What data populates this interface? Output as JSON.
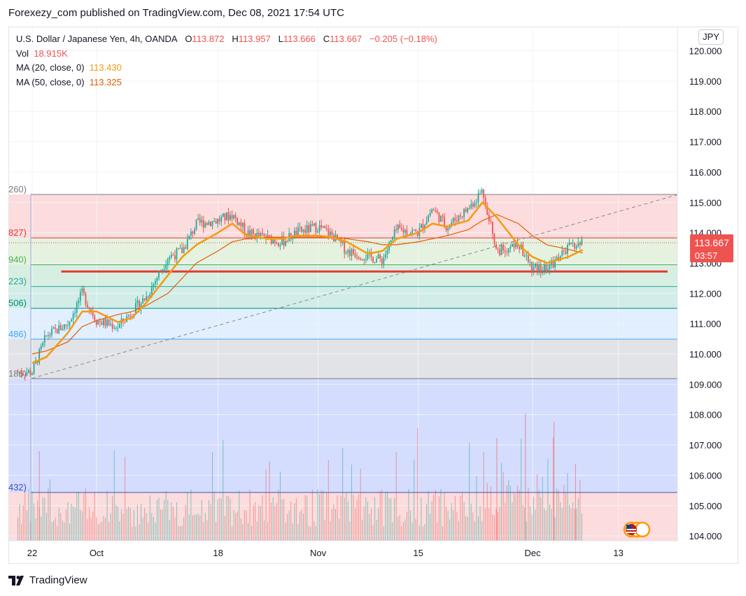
{
  "header": {
    "published_by": "Forexezy_com published on TradingView.com, Dec 08, 2021 17:54 UTC"
  },
  "legend": {
    "symbol": "U.S. Dollar / Japanese Yen, 4h, OANDA",
    "open_label": "O",
    "open": "113.872",
    "high_label": "H",
    "high": "113.957",
    "low_label": "L",
    "low": "113.666",
    "close_label": "C",
    "close": "113.667",
    "change": "−0.205 (−0.18%)",
    "vol_label": "Vol",
    "vol": "18.915K",
    "ma20_label": "MA (20, close, 0)",
    "ma20": "113.430",
    "ma50_label": "MA (50, close, 0)",
    "ma50": "113.325"
  },
  "currency_button": "JPY",
  "price_tag": {
    "price": "113.667",
    "countdown": "03:57"
  },
  "brand": "TradingView",
  "colors": {
    "up": "#26a69a",
    "down": "#ef5350",
    "ma20": "#f59a10",
    "ma50": "#e65c00",
    "support": "#e53935",
    "price_tag": "#ef5350"
  },
  "chart_data": {
    "type": "candlestick",
    "ylim": [
      103.9,
      120.35
    ],
    "y_ticks": [
      "104.000",
      "105.000",
      "106.000",
      "107.000",
      "108.000",
      "109.000",
      "110.000",
      "111.000",
      "112.000",
      "113.000",
      "114.000",
      "115.000",
      "116.000",
      "117.000",
      "118.000",
      "119.000",
      "120.000"
    ],
    "x_ticks": [
      {
        "label": "22",
        "date": "2021-09-22"
      },
      {
        "label": "Oct",
        "date": "2021-10-01"
      },
      {
        "label": "18",
        "date": "2021-10-18"
      },
      {
        "label": "Nov",
        "date": "2021-11-01"
      },
      {
        "label": "15",
        "date": "2021-11-15"
      },
      {
        "label": "Dec",
        "date": "2021-12-01"
      },
      {
        "label": "13",
        "date": "2021-12-13"
      }
    ],
    "price_path": [
      [
        "2021-09-22",
        109.4
      ],
      [
        "2021-09-24",
        110.6
      ],
      [
        "2021-09-27",
        111.0
      ],
      [
        "2021-09-29",
        112.0
      ],
      [
        "2021-10-01",
        111.1
      ],
      [
        "2021-10-04",
        110.9
      ],
      [
        "2021-10-06",
        111.4
      ],
      [
        "2021-10-08",
        111.9
      ],
      [
        "2021-10-11",
        113.2
      ],
      [
        "2021-10-13",
        113.4
      ],
      [
        "2021-10-15",
        114.3
      ],
      [
        "2021-10-18",
        114.4
      ],
      [
        "2021-10-20",
        114.6
      ],
      [
        "2021-10-22",
        114.0
      ],
      [
        "2021-10-25",
        113.8
      ],
      [
        "2021-10-27",
        113.7
      ],
      [
        "2021-10-29",
        114.0
      ],
      [
        "2021-11-01",
        114.2
      ],
      [
        "2021-11-03",
        113.9
      ],
      [
        "2021-11-05",
        113.4
      ],
      [
        "2021-11-08",
        113.2
      ],
      [
        "2021-11-10",
        113.1
      ],
      [
        "2021-11-12",
        114.1
      ],
      [
        "2021-11-15",
        114.0
      ],
      [
        "2021-11-17",
        114.8
      ],
      [
        "2021-11-19",
        114.2
      ],
      [
        "2021-11-22",
        114.8
      ],
      [
        "2021-11-24",
        115.4
      ],
      [
        "2021-11-26",
        113.4
      ],
      [
        "2021-11-29",
        113.6
      ],
      [
        "2021-12-01",
        112.8
      ],
      [
        "2021-12-03",
        112.8
      ],
      [
        "2021-12-06",
        113.5
      ],
      [
        "2021-12-08",
        113.67
      ]
    ],
    "ma20_path": [
      [
        "2021-09-22",
        109.7
      ],
      [
        "2021-09-24",
        109.9
      ],
      [
        "2021-09-27",
        110.7
      ],
      [
        "2021-09-29",
        111.4
      ],
      [
        "2021-10-01",
        111.4
      ],
      [
        "2021-10-04",
        111.05
      ],
      [
        "2021-10-06",
        111.2
      ],
      [
        "2021-10-08",
        111.7
      ],
      [
        "2021-10-11",
        112.6
      ],
      [
        "2021-10-13",
        113.2
      ],
      [
        "2021-10-15",
        113.6
      ],
      [
        "2021-10-18",
        114.0
      ],
      [
        "2021-10-20",
        114.3
      ],
      [
        "2021-10-22",
        113.9
      ],
      [
        "2021-10-25",
        113.8
      ],
      [
        "2021-10-27",
        113.8
      ],
      [
        "2021-10-29",
        113.9
      ],
      [
        "2021-11-01",
        113.9
      ],
      [
        "2021-11-03",
        113.85
      ],
      [
        "2021-11-05",
        113.7
      ],
      [
        "2021-11-08",
        113.3
      ],
      [
        "2021-11-10",
        113.4
      ],
      [
        "2021-11-12",
        113.8
      ],
      [
        "2021-11-15",
        114.0
      ],
      [
        "2021-11-17",
        114.3
      ],
      [
        "2021-11-19",
        114.2
      ],
      [
        "2021-11-22",
        114.4
      ],
      [
        "2021-11-24",
        115.0
      ],
      [
        "2021-11-26",
        114.5
      ],
      [
        "2021-11-29",
        113.6
      ],
      [
        "2021-12-01",
        113.2
      ],
      [
        "2021-12-03",
        113.0
      ],
      [
        "2021-12-06",
        113.2
      ],
      [
        "2021-12-08",
        113.43
      ]
    ],
    "ma50_path": [
      [
        "2021-09-22",
        110.0
      ],
      [
        "2021-09-24",
        110.1
      ],
      [
        "2021-09-27",
        110.4
      ],
      [
        "2021-09-29",
        110.9
      ],
      [
        "2021-10-01",
        111.1
      ],
      [
        "2021-10-04",
        111.3
      ],
      [
        "2021-10-06",
        111.4
      ],
      [
        "2021-10-08",
        111.6
      ],
      [
        "2021-10-11",
        112.0
      ],
      [
        "2021-10-13",
        112.5
      ],
      [
        "2021-10-15",
        113.0
      ],
      [
        "2021-10-18",
        113.4
      ],
      [
        "2021-10-20",
        113.7
      ],
      [
        "2021-10-22",
        113.8
      ],
      [
        "2021-10-25",
        113.85
      ],
      [
        "2021-10-27",
        113.85
      ],
      [
        "2021-10-29",
        113.85
      ],
      [
        "2021-11-01",
        113.85
      ],
      [
        "2021-11-03",
        113.85
      ],
      [
        "2021-11-05",
        113.8
      ],
      [
        "2021-11-08",
        113.7
      ],
      [
        "2021-11-10",
        113.6
      ],
      [
        "2021-11-12",
        113.6
      ],
      [
        "2021-11-15",
        113.7
      ],
      [
        "2021-11-17",
        113.8
      ],
      [
        "2021-11-19",
        113.9
      ],
      [
        "2021-11-22",
        114.1
      ],
      [
        "2021-11-24",
        114.4
      ],
      [
        "2021-11-26",
        114.6
      ],
      [
        "2021-11-29",
        114.3
      ],
      [
        "2021-12-01",
        113.9
      ],
      [
        "2021-12-03",
        113.6
      ],
      [
        "2021-12-06",
        113.45
      ],
      [
        "2021-12-08",
        113.33
      ]
    ],
    "fib_levels": [
      {
        "label": "260)",
        "value": 115.26,
        "color": "#787b86",
        "fill": "#fcdcdc"
      },
      {
        "label": "827)",
        "value": 113.827,
        "color": "#e53935",
        "fill": "#e4f2df"
      },
      {
        "label": "940)",
        "value": 112.94,
        "color": "#4caf50",
        "fill": "#d7efe2"
      },
      {
        "label": "223)",
        "value": 112.223,
        "color": "#26a69a",
        "fill": "#d2ede8"
      },
      {
        "label": "506)",
        "value": 111.506,
        "color": "#00897b",
        "fill": "#e1efff"
      },
      {
        "label": "486)",
        "value": 110.486,
        "color": "#42a5f5",
        "fill": "#e2e3e6"
      },
      {
        "label": "186)",
        "value": 109.186,
        "color": "#787b86",
        "fill": "#d4ddfe"
      },
      {
        "label": "432)",
        "value": 105.432,
        "color": "#3f51b5",
        "fill": "#fcdcdc"
      }
    ],
    "support_line": {
      "value": 112.72,
      "from": "2021-09-29",
      "to": "2021-12-10"
    },
    "trendline": {
      "from": [
        "2021-09-22",
        109.2
      ],
      "to": [
        "2021-12-13",
        115.25
      ]
    },
    "volume_axis_max": "18.915K"
  }
}
